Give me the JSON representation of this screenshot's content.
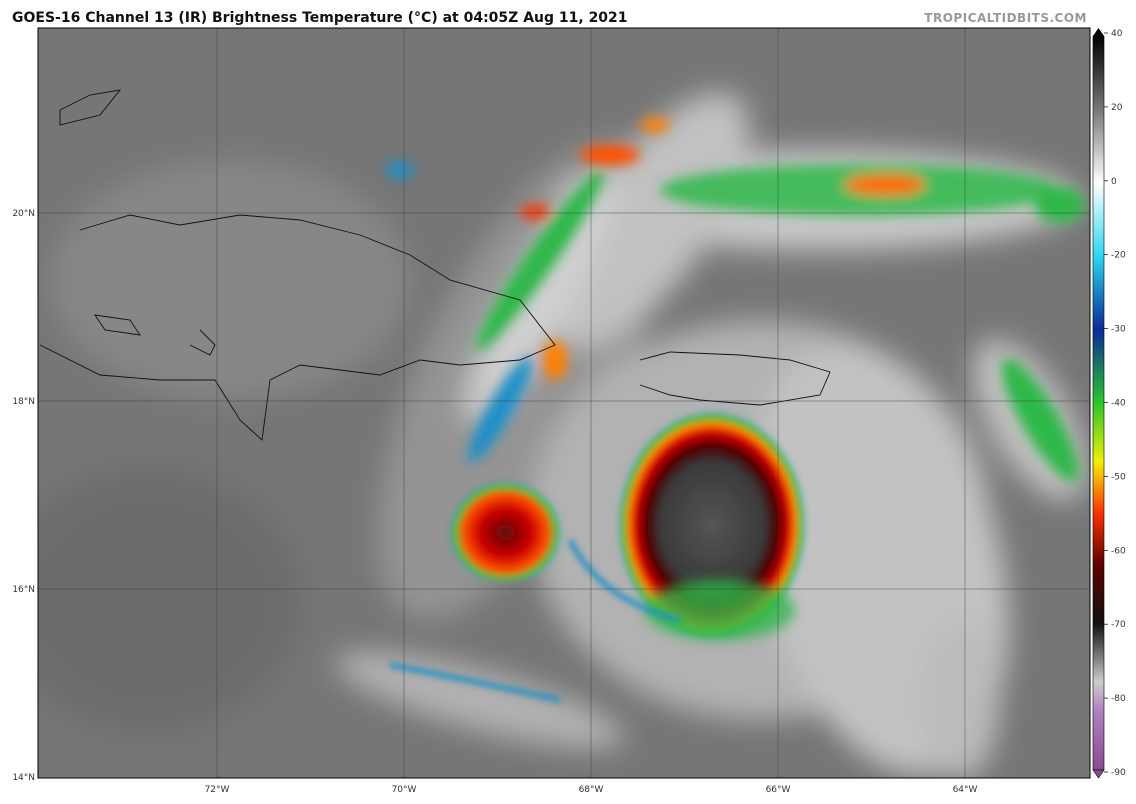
{
  "header": {
    "title": "GOES-16 Channel 13 (IR) Brightness Temperature (°C) at 04:05Z Aug 11, 2021",
    "credit": "TROPICALTIDBITS.COM"
  },
  "map": {
    "lat_labels": [
      "20°N",
      "18°N",
      "16°N",
      "14°N"
    ],
    "lon_labels": [
      "72°W",
      "70°W",
      "68°W",
      "66°W",
      "64°W"
    ]
  },
  "colorbar": {
    "ticks": [
      40,
      20,
      0,
      -20,
      -30,
      -40,
      -50,
      -60,
      -70,
      -80,
      -90
    ]
  }
}
